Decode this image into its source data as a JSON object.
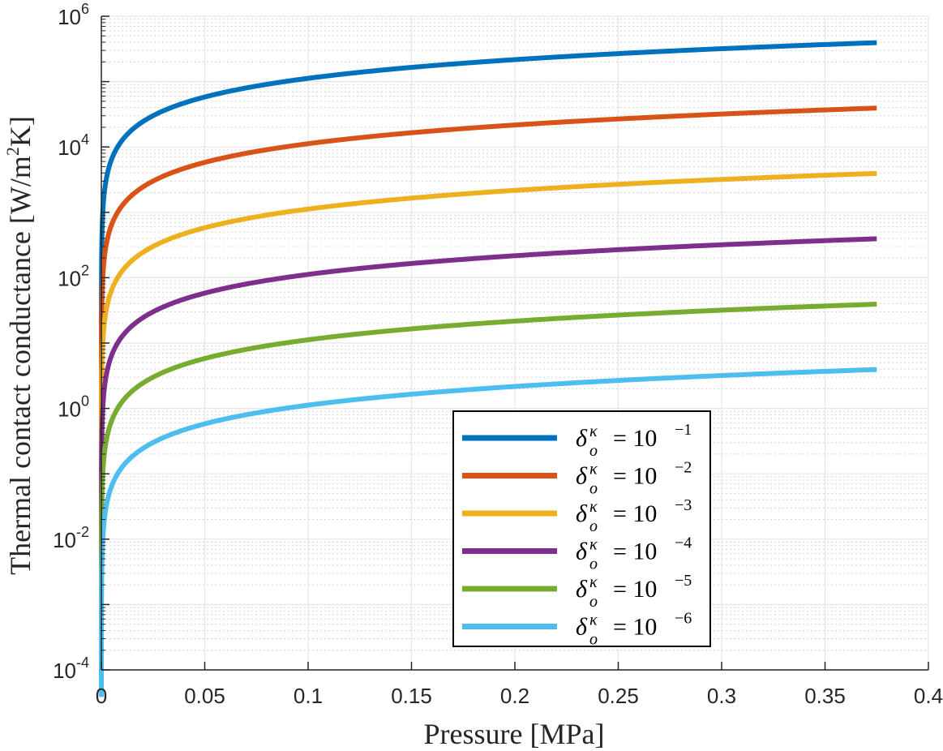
{
  "chart_data": {
    "type": "line",
    "title": "",
    "xlabel": "Pressure [MPa]",
    "ylabel": "Thermal contact conductance [W/m",
    "ylabel_sup": "2",
    "ylabel_end": "K]",
    "xlim": [
      0,
      0.4
    ],
    "ylim": [
      0.0001,
      1000000
    ],
    "yscale": "log",
    "grid": true,
    "minor_grid": true,
    "x_ticks": [
      "0",
      "0.05",
      "0.1",
      "0.15",
      "0.2",
      "0.25",
      "0.3",
      "0.35",
      "0.4"
    ],
    "x_tick_values": [
      0,
      0.05,
      0.1,
      0.15,
      0.2,
      0.25,
      0.3,
      0.35,
      0.4
    ],
    "y_ticks": [
      {
        "base": "10",
        "exp": "-4",
        "value": 0.0001
      },
      {
        "base": "10",
        "exp": "-2",
        "value": 0.01
      },
      {
        "base": "10",
        "exp": "0",
        "value": 1
      },
      {
        "base": "10",
        "exp": "2",
        "value": 100
      },
      {
        "base": "10",
        "exp": "4",
        "value": 10000
      },
      {
        "base": "10",
        "exp": "6",
        "value": 1000000
      }
    ],
    "legend_position": "lower-right-center",
    "x_range": [
      2e-06,
      0.375
    ],
    "series": [
      {
        "name": "δ_o^κ = 10^-1",
        "label_main": "δ",
        "label_sub": "o",
        "label_sup": "κ",
        "label_eq": "= 10",
        "label_exp": "−1",
        "color": "#0072BD",
        "coef": 1000000,
        "exponent": 0.95
      },
      {
        "name": "δ_o^κ = 10^-2",
        "label_main": "δ",
        "label_sub": "o",
        "label_sup": "κ",
        "label_eq": "= 10",
        "label_exp": "−2",
        "color": "#D95319",
        "coef": 100000,
        "exponent": 0.95
      },
      {
        "name": "δ_o^κ = 10^-3",
        "label_main": "δ",
        "label_sub": "o",
        "label_sup": "κ",
        "label_eq": "= 10",
        "label_exp": "−3",
        "color": "#EDB120",
        "coef": 10000,
        "exponent": 0.95
      },
      {
        "name": "δ_o^κ = 10^-4",
        "label_main": "δ",
        "label_sub": "o",
        "label_sup": "κ",
        "label_eq": "= 10",
        "label_exp": "−4",
        "color": "#7E2F8E",
        "coef": 1000,
        "exponent": 0.95
      },
      {
        "name": "δ_o^κ = 10^-5",
        "label_main": "δ",
        "label_sub": "o",
        "label_sup": "κ",
        "label_eq": "= 10",
        "label_exp": "−5",
        "color": "#77AC30",
        "coef": 100,
        "exponent": 0.95
      },
      {
        "name": "δ_o^κ = 10^-6",
        "label_main": "δ",
        "label_sub": "o",
        "label_sup": "κ",
        "label_eq": "= 10",
        "label_exp": "−6",
        "color": "#4DBEEE",
        "coef": 10,
        "exponent": 0.95
      }
    ]
  }
}
